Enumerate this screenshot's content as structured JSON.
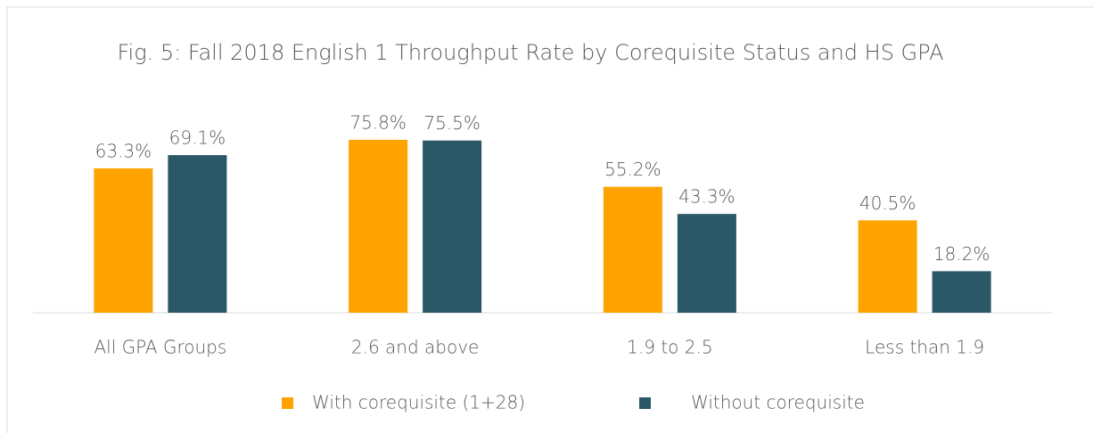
{
  "chart_data": {
    "type": "bar",
    "title": "Fig. 5: Fall 2018 English 1 Throughput Rate by Corequisite Status and HS GPA",
    "categories": [
      "All GPA Groups",
      "2.6 and above",
      "1.9 to 2.5",
      "Less than 1.9"
    ],
    "series": [
      {
        "name": "With corequisite (1+28)",
        "color": "#ffa300",
        "values": [
          63.3,
          75.8,
          55.2,
          40.5
        ],
        "value_labels": [
          "63.3%",
          "75.8%",
          "55.2%",
          "40.5%"
        ]
      },
      {
        "name": "Without corequisite",
        "color": "#2b5866",
        "values": [
          69.1,
          75.5,
          43.3,
          18.2
        ],
        "value_labels": [
          "69.1%",
          "75.5%",
          "43.3%",
          "18.2%"
        ]
      }
    ],
    "legend": "bottom"
  }
}
